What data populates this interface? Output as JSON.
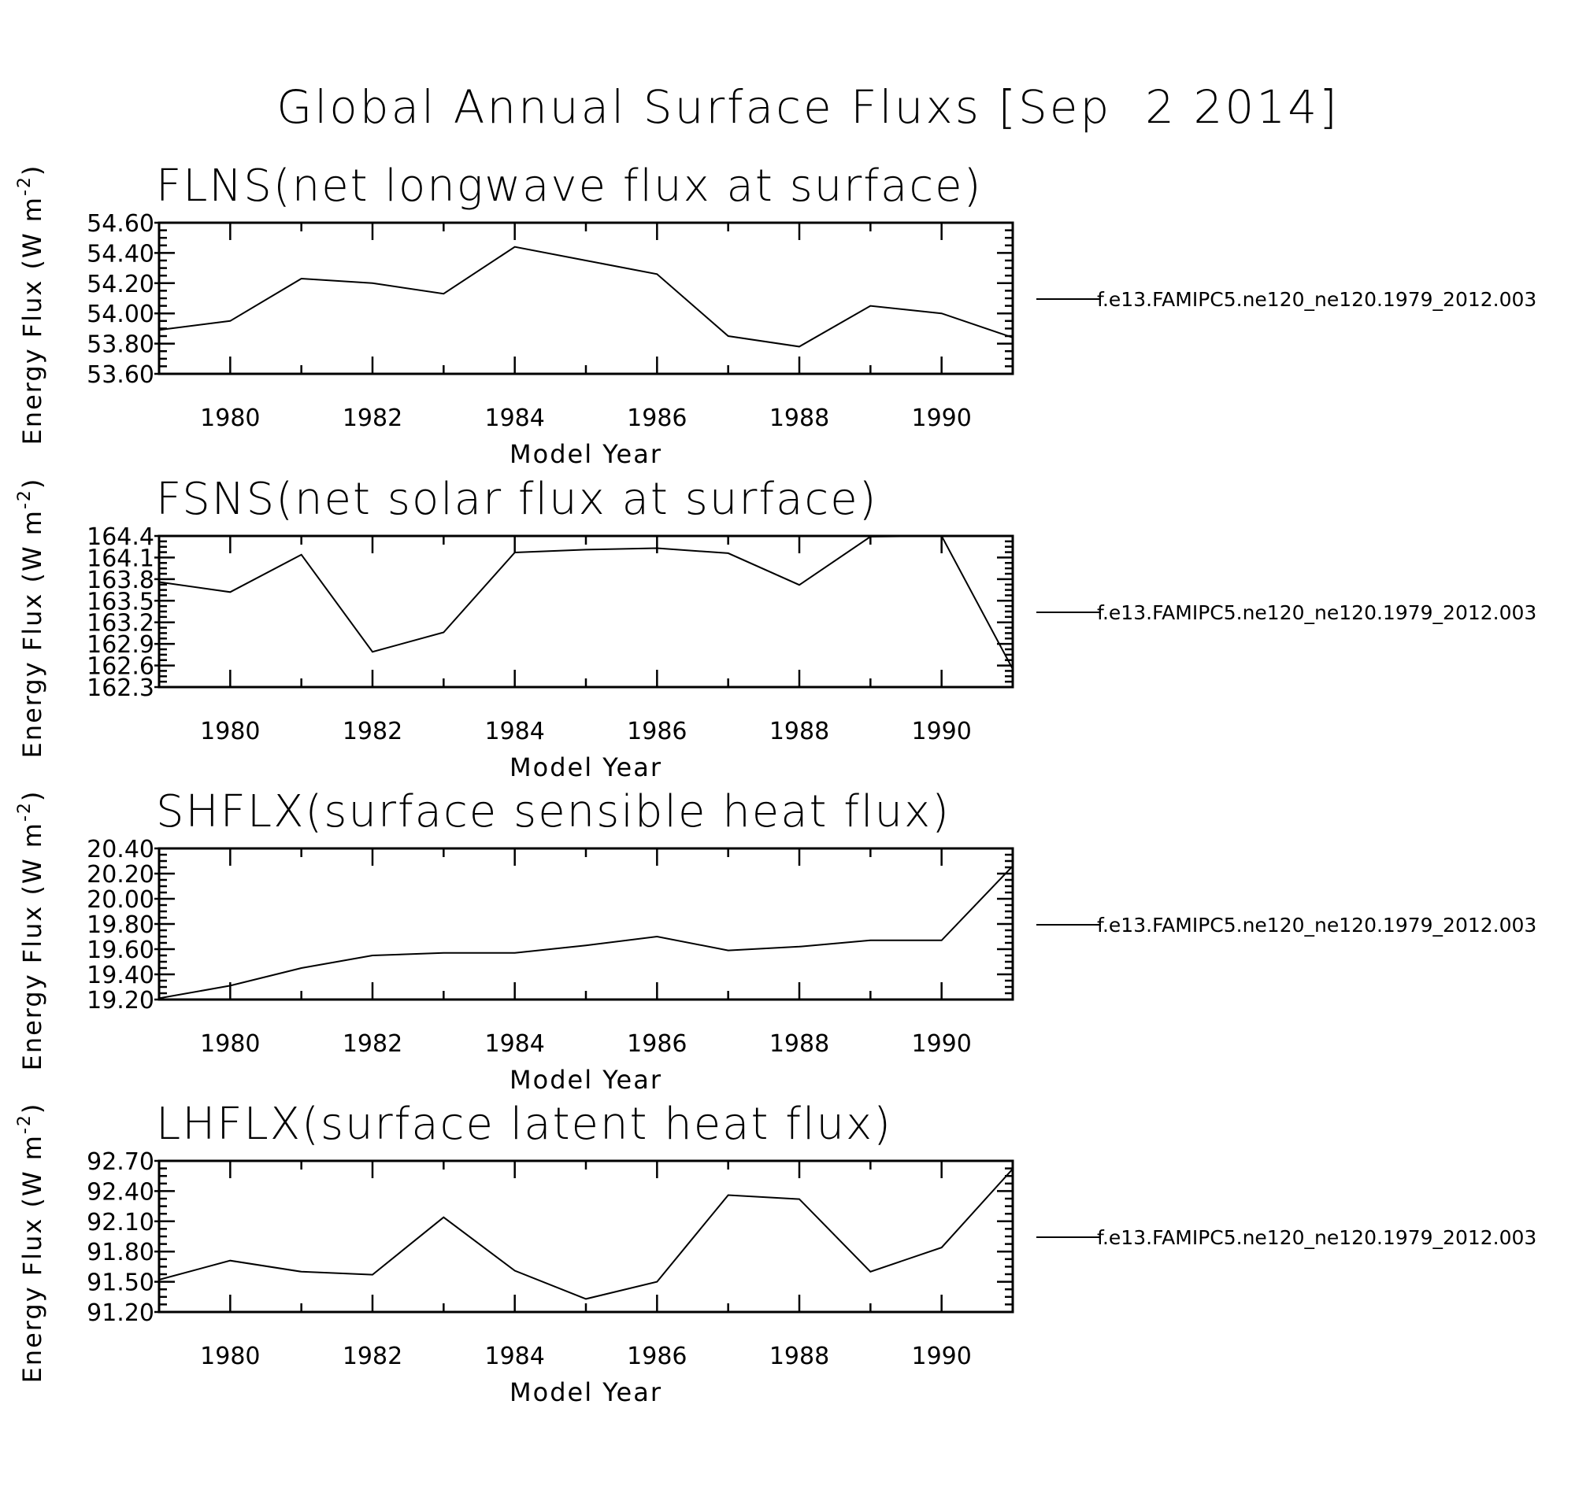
{
  "title": "Global Annual Surface Fluxs [Sep  2 2014]",
  "chart_data": [
    {
      "type": "line",
      "title": "FLNS(net longwave flux at surface)",
      "xlabel": "Model Year",
      "ylabel": "Energy Flux (W m",
      "ylabel_sup": "-2",
      "ylabel_end": ")",
      "xlim": [
        1979,
        1991
      ],
      "ylim": [
        53.6,
        54.6
      ],
      "x_ticks": [
        1980,
        1982,
        1984,
        1986,
        1988,
        1990
      ],
      "x_tick_labels": [
        "1980",
        "1982",
        "1984",
        "1986",
        "1988",
        "1990"
      ],
      "y_ticks": [
        53.6,
        53.8,
        54.0,
        54.2,
        54.4,
        54.6
      ],
      "y_tick_labels": [
        "53.60",
        "53.80",
        "54.00",
        "54.20",
        "54.40",
        "54.60"
      ],
      "x": [
        1979,
        1980,
        1981,
        1982,
        1983,
        1984,
        1985,
        1986,
        1987,
        1988,
        1989,
        1990,
        1991
      ],
      "series": [
        {
          "name": "f.e13.FAMIPC5.ne120_ne120.1979_2012.003",
          "values": [
            53.89,
            53.95,
            54.23,
            54.2,
            54.13,
            54.44,
            54.35,
            54.26,
            53.85,
            53.78,
            54.05,
            54.0,
            53.84
          ]
        }
      ]
    },
    {
      "type": "line",
      "title": "FSNS(net solar flux at surface)",
      "xlabel": "Model Year",
      "ylabel": "Energy Flux (W m",
      "ylabel_sup": "-2",
      "ylabel_end": ")",
      "xlim": [
        1979,
        1991
      ],
      "ylim": [
        162.3,
        164.4
      ],
      "x_ticks": [
        1980,
        1982,
        1984,
        1986,
        1988,
        1990
      ],
      "x_tick_labels": [
        "1980",
        "1982",
        "1984",
        "1986",
        "1988",
        "1990"
      ],
      "y_ticks": [
        162.3,
        162.6,
        162.9,
        163.2,
        163.5,
        163.8,
        164.1,
        164.4
      ],
      "y_tick_labels": [
        "162.3",
        "162.6",
        "162.9",
        "163.2",
        "163.5",
        "163.8",
        "164.1",
        "164.4"
      ],
      "x": [
        1979,
        1980,
        1981,
        1982,
        1983,
        1984,
        1985,
        1986,
        1987,
        1988,
        1989,
        1990,
        1991
      ],
      "series": [
        {
          "name": "f.e13.FAMIPC5.ne120_ne120.1979_2012.003",
          "values": [
            163.76,
            163.62,
            164.14,
            162.79,
            163.06,
            164.17,
            164.21,
            164.23,
            164.16,
            163.72,
            164.39,
            164.4,
            162.55
          ]
        }
      ]
    },
    {
      "type": "line",
      "title": "SHFLX(surface sensible heat flux)",
      "xlabel": "Model Year",
      "ylabel": "Energy Flux (W m",
      "ylabel_sup": "-2",
      "ylabel_end": ")",
      "xlim": [
        1979,
        1991
      ],
      "ylim": [
        19.2,
        20.4
      ],
      "x_ticks": [
        1980,
        1982,
        1984,
        1986,
        1988,
        1990
      ],
      "x_tick_labels": [
        "1980",
        "1982",
        "1984",
        "1986",
        "1988",
        "1990"
      ],
      "y_ticks": [
        19.2,
        19.4,
        19.6,
        19.8,
        20.0,
        20.2,
        20.4
      ],
      "y_tick_labels": [
        "19.20",
        "19.40",
        "19.60",
        "19.80",
        "20.00",
        "20.20",
        "20.40"
      ],
      "x": [
        1979,
        1980,
        1981,
        1982,
        1983,
        1984,
        1985,
        1986,
        1987,
        1988,
        1989,
        1990,
        1991
      ],
      "series": [
        {
          "name": "f.e13.FAMIPC5.ne120_ne120.1979_2012.003",
          "values": [
            19.21,
            19.31,
            19.45,
            19.55,
            19.57,
            19.57,
            19.63,
            19.7,
            19.59,
            19.62,
            19.67,
            19.67,
            20.26
          ]
        }
      ]
    },
    {
      "type": "line",
      "title": "LHFLX(surface latent heat flux)",
      "xlabel": "Model Year",
      "ylabel": "Energy Flux (W m",
      "ylabel_sup": "-2",
      "ylabel_end": ")",
      "xlim": [
        1979,
        1991
      ],
      "ylim": [
        91.2,
        92.7
      ],
      "x_ticks": [
        1980,
        1982,
        1984,
        1986,
        1988,
        1990
      ],
      "x_tick_labels": [
        "1980",
        "1982",
        "1984",
        "1986",
        "1988",
        "1990"
      ],
      "y_ticks": [
        91.2,
        91.5,
        91.8,
        92.1,
        92.4,
        92.7
      ],
      "y_tick_labels": [
        "91.20",
        "91.50",
        "91.80",
        "92.10",
        "92.40",
        "92.70"
      ],
      "x": [
        1979,
        1980,
        1981,
        1982,
        1983,
        1984,
        1985,
        1986,
        1987,
        1988,
        1989,
        1990,
        1991
      ],
      "series": [
        {
          "name": "f.e13.FAMIPC5.ne120_ne120.1979_2012.003",
          "values": [
            91.52,
            91.71,
            91.6,
            91.57,
            92.14,
            91.61,
            91.33,
            91.5,
            92.36,
            92.32,
            91.6,
            91.84,
            92.62
          ]
        }
      ]
    }
  ]
}
